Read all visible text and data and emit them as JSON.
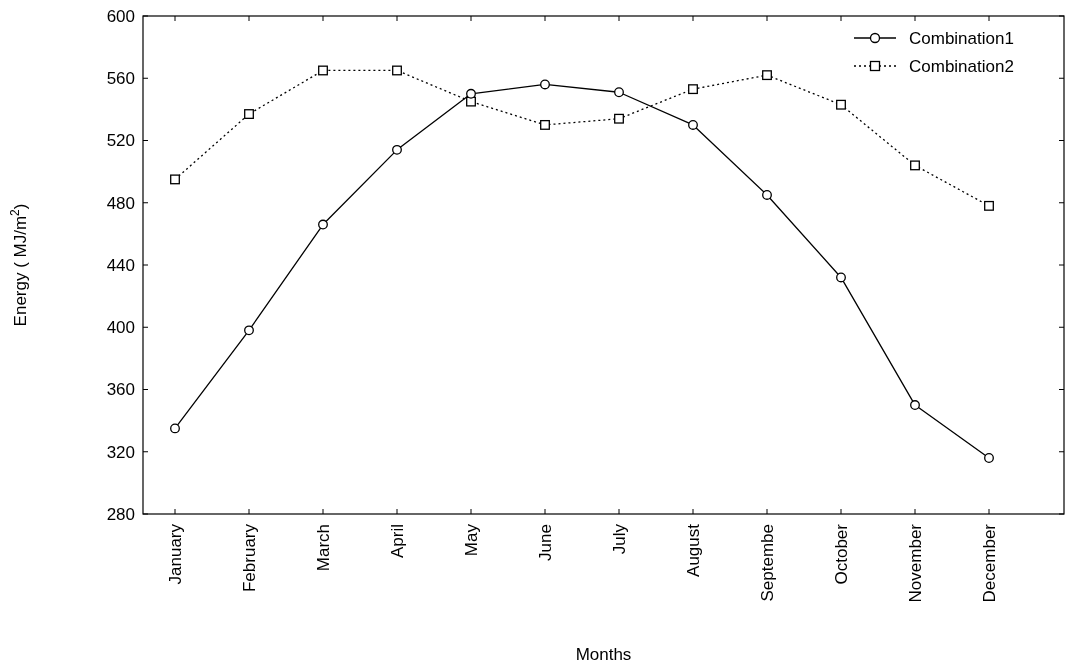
{
  "chart_data": {
    "type": "line",
    "xlabel": "Months",
    "ylabel": "Energy ( MJ/m$^{2}$)",
    "categories": [
      "January",
      "February",
      "March",
      "April",
      "May",
      "June",
      "July",
      "August",
      "Septembe",
      "October",
      "November",
      "December"
    ],
    "series": [
      {
        "name": "Combination1",
        "color": "#000000",
        "marker": "circle",
        "line_style": "solid",
        "values": [
          335,
          398,
          466,
          514,
          550,
          556,
          551,
          530,
          485,
          432,
          350,
          316
        ]
      },
      {
        "name": "Combination2",
        "color": "#000000",
        "marker": "square",
        "line_style": "dotted",
        "values": [
          495,
          537,
          565,
          565,
          545,
          530,
          534,
          553,
          562,
          543,
          504,
          478
        ]
      }
    ],
    "ylim": [
      280,
      600
    ],
    "yticks": [
      280,
      320,
      360,
      400,
      440,
      480,
      520,
      560,
      600
    ],
    "grid": false,
    "legend": "top right"
  }
}
